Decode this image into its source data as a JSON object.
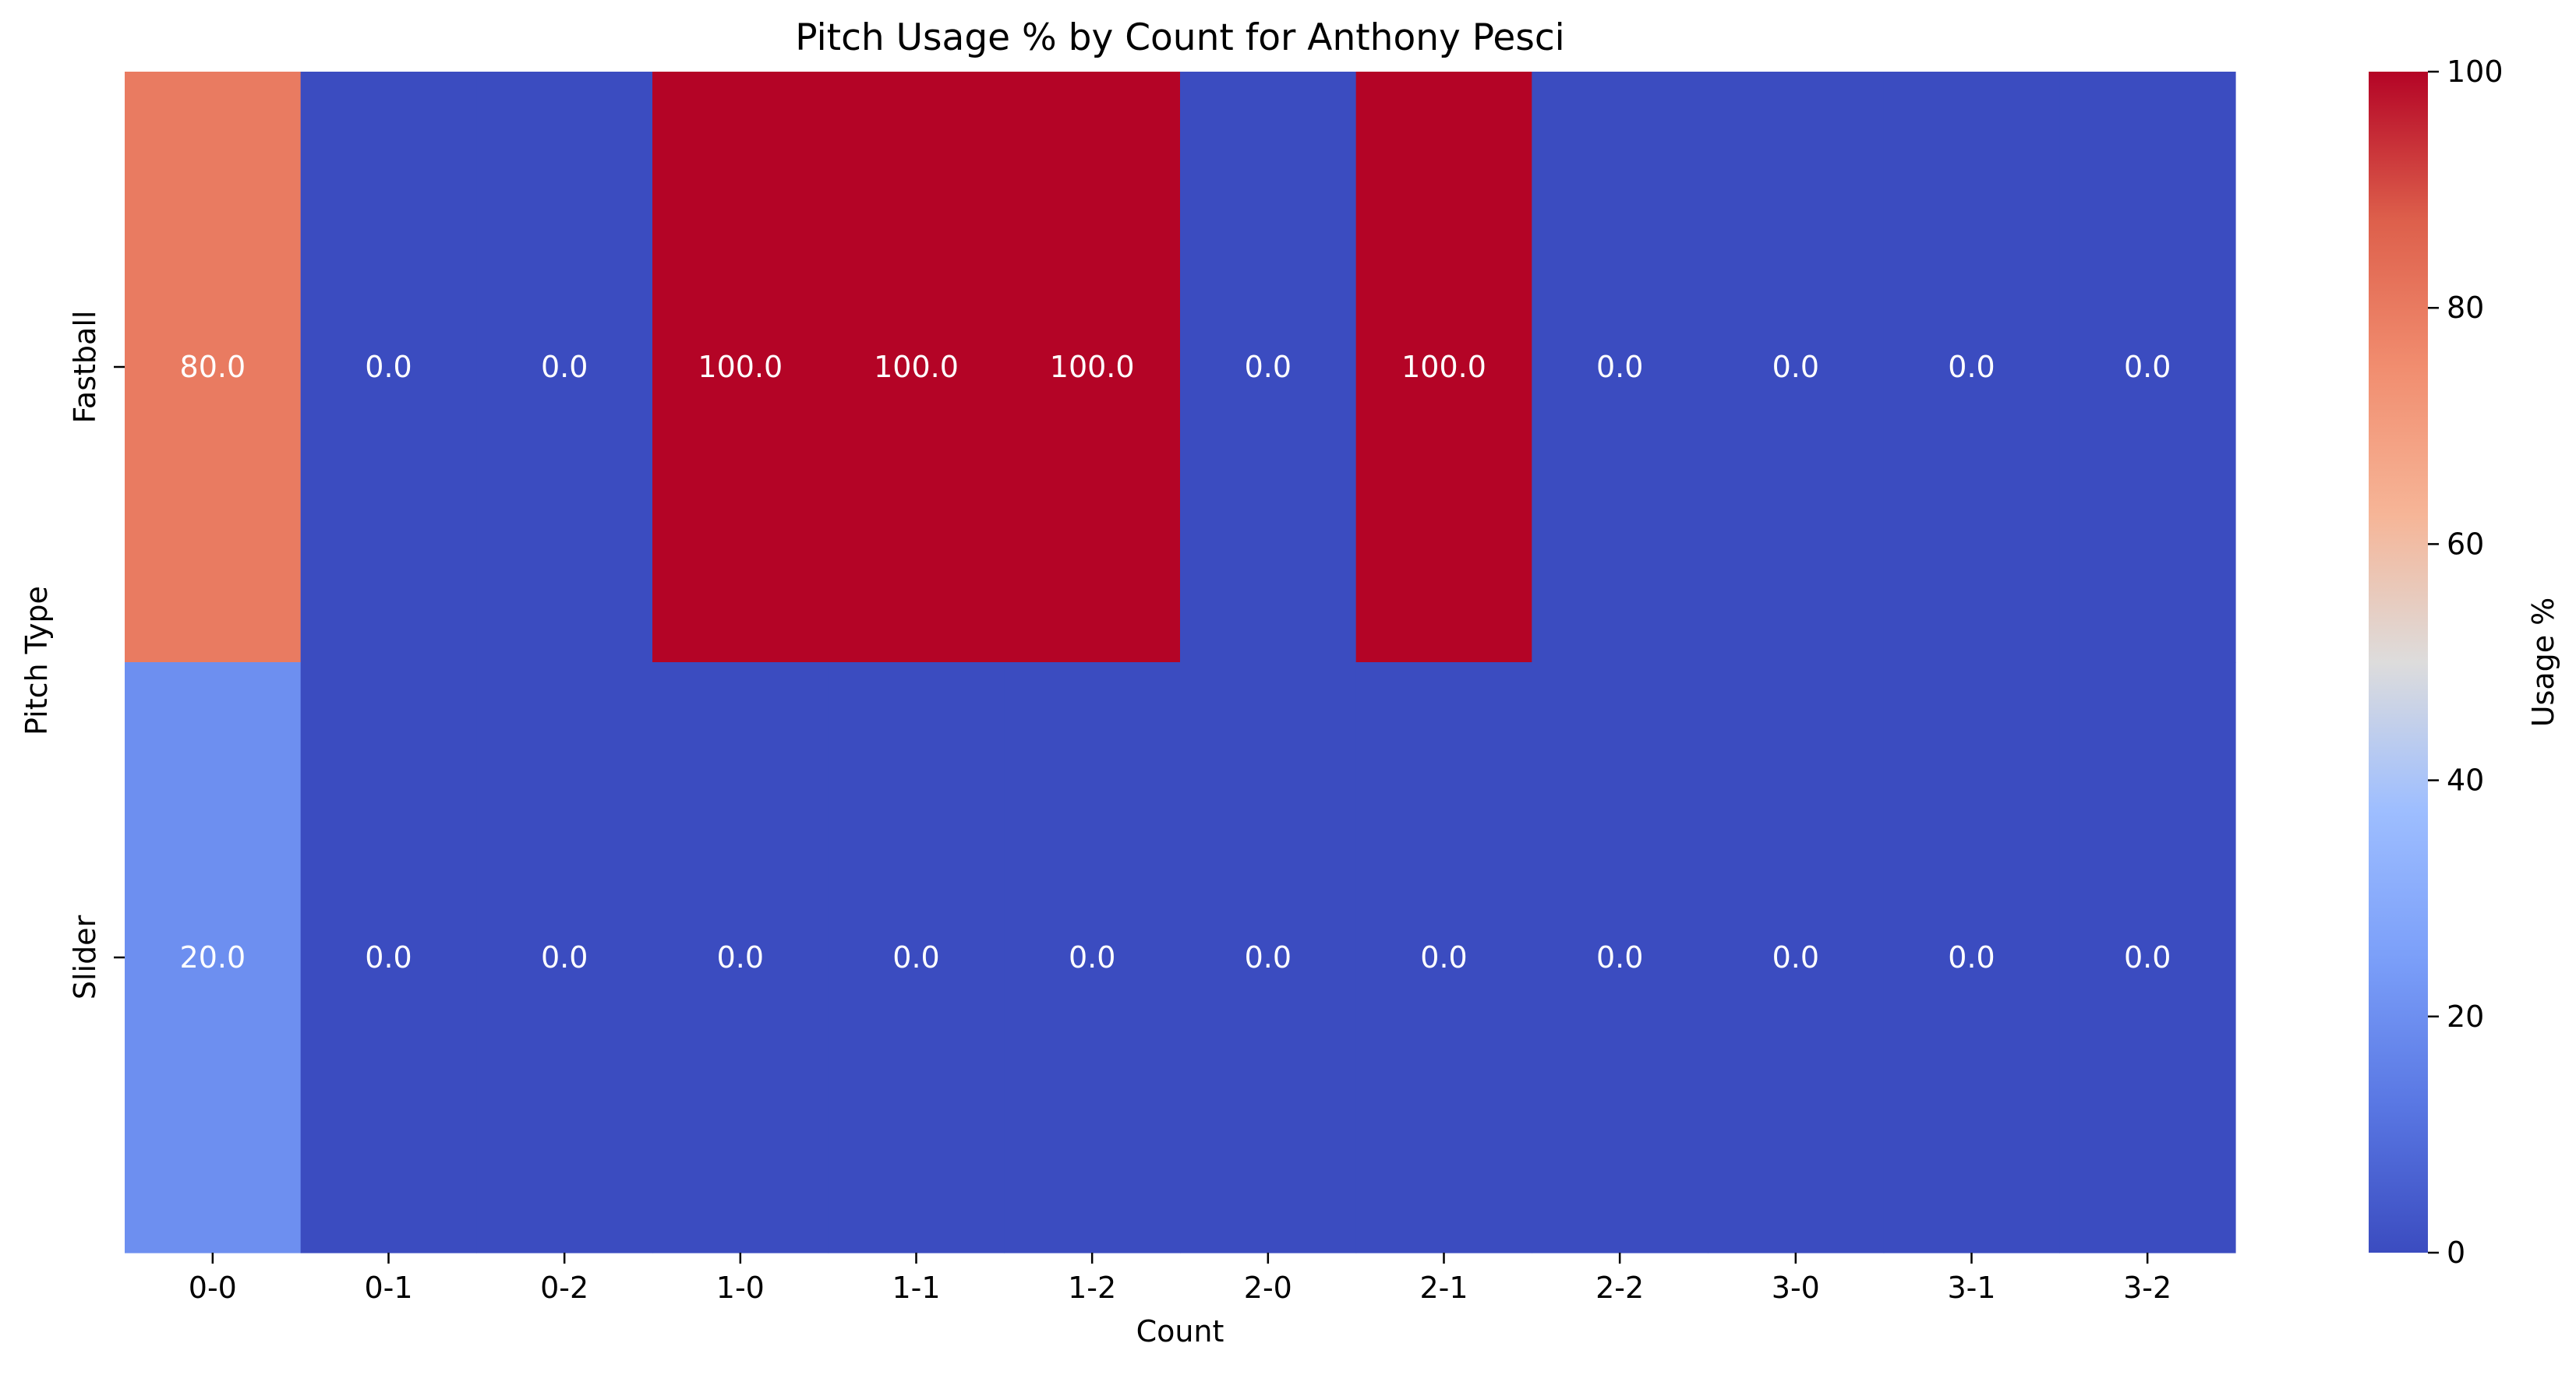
{
  "chart_data": {
    "type": "heatmap",
    "title": "Pitch Usage % by Count for Anthony Pesci",
    "xlabel": "Count",
    "ylabel": "Pitch Type",
    "x": [
      "0-0",
      "0-1",
      "0-2",
      "1-0",
      "1-1",
      "1-2",
      "2-0",
      "2-1",
      "2-2",
      "3-0",
      "3-1",
      "3-2"
    ],
    "y": [
      "Fastball",
      "Slider"
    ],
    "values": [
      [
        80.0,
        0.0,
        0.0,
        100.0,
        100.0,
        100.0,
        0.0,
        100.0,
        0.0,
        0.0,
        0.0,
        0.0
      ],
      [
        20.0,
        0.0,
        0.0,
        0.0,
        0.0,
        0.0,
        0.0,
        0.0,
        0.0,
        0.0,
        0.0,
        0.0
      ]
    ],
    "annotations": [
      [
        "80.0",
        "0.0",
        "0.0",
        "100.0",
        "100.0",
        "100.0",
        "0.0",
        "100.0",
        "0.0",
        "0.0",
        "0.0",
        "0.0"
      ],
      [
        "20.0",
        "0.0",
        "0.0",
        "0.0",
        "0.0",
        "0.0",
        "0.0",
        "0.0",
        "0.0",
        "0.0",
        "0.0",
        "0.0"
      ]
    ],
    "colorscale": "coolwarm",
    "colorbar": {
      "label": "Usage %",
      "range": [
        0,
        100
      ],
      "ticks": [
        "0",
        "20",
        "40",
        "60",
        "80",
        "100"
      ]
    }
  }
}
